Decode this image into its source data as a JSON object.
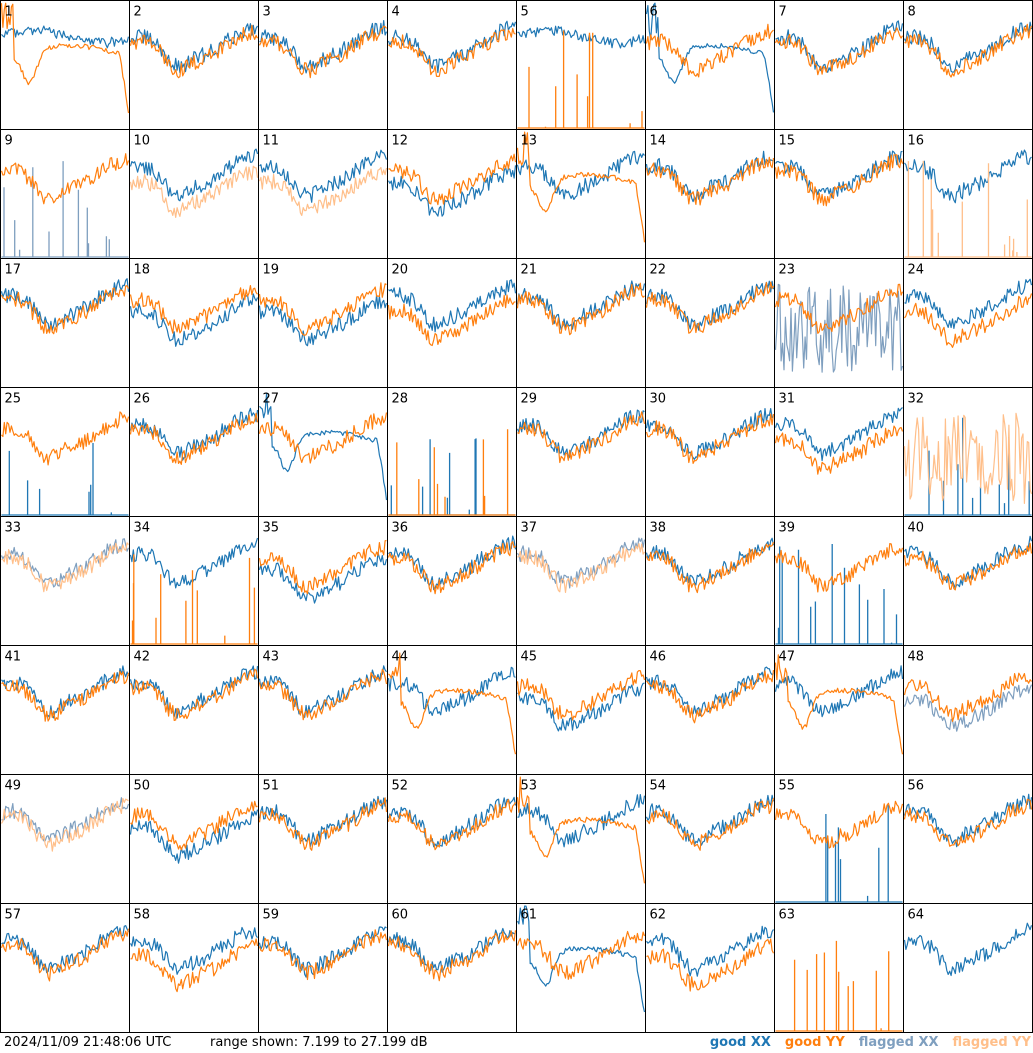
{
  "chart_data": {
    "type": "line",
    "layout": "8x8 small multiples",
    "panel_labels": [
      "1",
      "2",
      "3",
      "4",
      "5",
      "6",
      "7",
      "8",
      "9",
      "10",
      "11",
      "12",
      "13",
      "14",
      "15",
      "16",
      "17",
      "18",
      "19",
      "20",
      "21",
      "22",
      "23",
      "24",
      "25",
      "26",
      "27",
      "28",
      "29",
      "30",
      "31",
      "32",
      "33",
      "34",
      "35",
      "36",
      "37",
      "38",
      "39",
      "40",
      "41",
      "42",
      "43",
      "44",
      "45",
      "46",
      "47",
      "48",
      "49",
      "50",
      "51",
      "52",
      "53",
      "54",
      "55",
      "56",
      "57",
      "58",
      "59",
      "60",
      "61",
      "62",
      "63",
      "64"
    ],
    "ylim": [
      7.199,
      27.199
    ],
    "yunit": "dB",
    "series": [
      {
        "name": "good XX",
        "color": "#1f77b4"
      },
      {
        "name": "good YY",
        "color": "#ff7f0e"
      },
      {
        "name": "flagged XX",
        "color": "#7f9fbf"
      },
      {
        "name": "flagged YY",
        "color": "#ffbf8a"
      }
    ],
    "panels": [
      {
        "id": 1,
        "xx": "bump",
        "yy": "dip",
        "xx_state": "good",
        "yy_state": "good"
      },
      {
        "id": 2,
        "xx": "normal",
        "yy": "normal",
        "xx_state": "good",
        "yy_state": "good"
      },
      {
        "id": 3,
        "xx": "normal",
        "yy": "normal",
        "xx_state": "good",
        "yy_state": "good"
      },
      {
        "id": 4,
        "xx": "normal",
        "yy": "normal",
        "xx_state": "good",
        "yy_state": "good"
      },
      {
        "id": 5,
        "xx": "bump",
        "yy": "spikes",
        "xx_state": "good",
        "yy_state": "good"
      },
      {
        "id": 6,
        "xx": "dip",
        "yy": "normal",
        "xx_state": "good",
        "yy_state": "good"
      },
      {
        "id": 7,
        "xx": "normal",
        "yy": "normal",
        "xx_state": "good",
        "yy_state": "good"
      },
      {
        "id": 8,
        "xx": "normal",
        "yy": "normal",
        "xx_state": "good",
        "yy_state": "good"
      },
      {
        "id": 9,
        "xx": "spikes",
        "yy": "normal",
        "xx_state": "flagged",
        "yy_state": "good"
      },
      {
        "id": 10,
        "xx": "normal",
        "yy": "low",
        "xx_state": "good",
        "yy_state": "flagged"
      },
      {
        "id": 11,
        "xx": "normal",
        "yy": "low",
        "xx_state": "good",
        "yy_state": "flagged"
      },
      {
        "id": 12,
        "xx": "low",
        "yy": "normal",
        "xx_state": "good",
        "yy_state": "good"
      },
      {
        "id": 13,
        "xx": "normal",
        "yy": "dip",
        "xx_state": "good",
        "yy_state": "good"
      },
      {
        "id": 14,
        "xx": "normal",
        "yy": "normal",
        "xx_state": "good",
        "yy_state": "good"
      },
      {
        "id": 15,
        "xx": "normal",
        "yy": "normal",
        "xx_state": "good",
        "yy_state": "good"
      },
      {
        "id": 16,
        "xx": "normal",
        "yy": "spikes",
        "xx_state": "good",
        "yy_state": "flagged"
      },
      {
        "id": 17,
        "xx": "normal",
        "yy": "normal",
        "xx_state": "good",
        "yy_state": "good"
      },
      {
        "id": 18,
        "xx": "low",
        "yy": "normal",
        "xx_state": "good",
        "yy_state": "good"
      },
      {
        "id": 19,
        "xx": "low",
        "yy": "normal",
        "xx_state": "good",
        "yy_state": "good"
      },
      {
        "id": 20,
        "xx": "normal",
        "yy": "low",
        "xx_state": "good",
        "yy_state": "good"
      },
      {
        "id": 21,
        "xx": "normal",
        "yy": "normal",
        "xx_state": "good",
        "yy_state": "good"
      },
      {
        "id": 22,
        "xx": "normal",
        "yy": "normal",
        "xx_state": "good",
        "yy_state": "good"
      },
      {
        "id": 23,
        "xx": "noisy",
        "yy": "normal",
        "xx_state": "flagged",
        "yy_state": "good"
      },
      {
        "id": 24,
        "xx": "normal",
        "yy": "low",
        "xx_state": "good",
        "yy_state": "good"
      },
      {
        "id": 25,
        "xx": "spikes",
        "yy": "normal",
        "xx_state": "good",
        "yy_state": "good"
      },
      {
        "id": 26,
        "xx": "normal",
        "yy": "normal",
        "xx_state": "good",
        "yy_state": "good"
      },
      {
        "id": 27,
        "xx": "dip",
        "yy": "normal",
        "xx_state": "good",
        "yy_state": "good"
      },
      {
        "id": 28,
        "xx": "spikes",
        "yy": "spikes",
        "xx_state": "good",
        "yy_state": "good"
      },
      {
        "id": 29,
        "xx": "normal",
        "yy": "normal",
        "xx_state": "good",
        "yy_state": "good"
      },
      {
        "id": 30,
        "xx": "normal",
        "yy": "normal",
        "xx_state": "good",
        "yy_state": "good"
      },
      {
        "id": 31,
        "xx": "normal",
        "yy": "low",
        "xx_state": "good",
        "yy_state": "good"
      },
      {
        "id": 32,
        "xx": "spikes",
        "yy": "noisy",
        "xx_state": "good",
        "yy_state": "flagged"
      },
      {
        "id": 33,
        "xx": "normal",
        "yy": "normal",
        "xx_state": "flagged",
        "yy_state": "flagged"
      },
      {
        "id": 34,
        "xx": "normal",
        "yy": "spikes",
        "xx_state": "good",
        "yy_state": "good"
      },
      {
        "id": 35,
        "xx": "low",
        "yy": "normal",
        "xx_state": "good",
        "yy_state": "good"
      },
      {
        "id": 36,
        "xx": "normal",
        "yy": "normal",
        "xx_state": "good",
        "yy_state": "good"
      },
      {
        "id": 37,
        "xx": "normal",
        "yy": "normal",
        "xx_state": "flagged",
        "yy_state": "flagged"
      },
      {
        "id": 38,
        "xx": "normal",
        "yy": "normal",
        "xx_state": "good",
        "yy_state": "good"
      },
      {
        "id": 39,
        "xx": "spikes",
        "yy": "normal",
        "xx_state": "good",
        "yy_state": "good"
      },
      {
        "id": 40,
        "xx": "normal",
        "yy": "normal",
        "xx_state": "good",
        "yy_state": "good"
      },
      {
        "id": 41,
        "xx": "normal",
        "yy": "normal",
        "xx_state": "good",
        "yy_state": "good"
      },
      {
        "id": 42,
        "xx": "normal",
        "yy": "normal",
        "xx_state": "good",
        "yy_state": "good"
      },
      {
        "id": 43,
        "xx": "normal",
        "yy": "normal",
        "xx_state": "good",
        "yy_state": "good"
      },
      {
        "id": 44,
        "xx": "normal",
        "yy": "dip",
        "xx_state": "good",
        "yy_state": "good"
      },
      {
        "id": 45,
        "xx": "low",
        "yy": "normal",
        "xx_state": "good",
        "yy_state": "good"
      },
      {
        "id": 46,
        "xx": "normal",
        "yy": "normal",
        "xx_state": "good",
        "yy_state": "good"
      },
      {
        "id": 47,
        "xx": "normal",
        "yy": "dip",
        "xx_state": "good",
        "yy_state": "good"
      },
      {
        "id": 48,
        "xx": "low",
        "yy": "normal",
        "xx_state": "flagged",
        "yy_state": "good"
      },
      {
        "id": 49,
        "xx": "normal",
        "yy": "normal",
        "xx_state": "flagged",
        "yy_state": "flagged"
      },
      {
        "id": 50,
        "xx": "low",
        "yy": "normal",
        "xx_state": "good",
        "yy_state": "good"
      },
      {
        "id": 51,
        "xx": "normal",
        "yy": "normal",
        "xx_state": "good",
        "yy_state": "good"
      },
      {
        "id": 52,
        "xx": "normal",
        "yy": "normal",
        "xx_state": "good",
        "yy_state": "good"
      },
      {
        "id": 53,
        "xx": "normal",
        "yy": "dip",
        "xx_state": "good",
        "yy_state": "good"
      },
      {
        "id": 54,
        "xx": "normal",
        "yy": "normal",
        "xx_state": "good",
        "yy_state": "good"
      },
      {
        "id": 55,
        "xx": "spikes",
        "yy": "normal",
        "xx_state": "good",
        "yy_state": "good"
      },
      {
        "id": 56,
        "xx": "normal",
        "yy": "normal",
        "xx_state": "good",
        "yy_state": "good"
      },
      {
        "id": 57,
        "xx": "normal",
        "yy": "normal",
        "xx_state": "good",
        "yy_state": "good"
      },
      {
        "id": 58,
        "xx": "normal",
        "yy": "low",
        "xx_state": "good",
        "yy_state": "good"
      },
      {
        "id": 59,
        "xx": "normal",
        "yy": "normal",
        "xx_state": "good",
        "yy_state": "good"
      },
      {
        "id": 60,
        "xx": "normal",
        "yy": "normal",
        "xx_state": "good",
        "yy_state": "good"
      },
      {
        "id": 61,
        "xx": "dip",
        "yy": "normal",
        "xx_state": "good",
        "yy_state": "good"
      },
      {
        "id": 62,
        "xx": "normal",
        "yy": "low",
        "xx_state": "good",
        "yy_state": "good"
      },
      {
        "id": 63,
        "xx": "none",
        "yy": "spikes",
        "xx_state": "good",
        "yy_state": "good"
      },
      {
        "id": 64,
        "xx": "normal",
        "yy": "none",
        "xx_state": "good",
        "yy_state": "good"
      }
    ]
  },
  "footer": {
    "timestamp": "2024/11/09 21:48:06 UTC",
    "range_text": "range shown: 7.199 to 27.199 dB",
    "legend": [
      {
        "label": "good",
        "pol": "XX",
        "color": "#1f77b4"
      },
      {
        "label": "good",
        "pol": "YY",
        "color": "#ff7f0e"
      },
      {
        "label": "flagged",
        "pol": "XX",
        "color": "#7f9fbf"
      },
      {
        "label": "flagged",
        "pol": "YY",
        "color": "#ffbf8a"
      }
    ]
  }
}
